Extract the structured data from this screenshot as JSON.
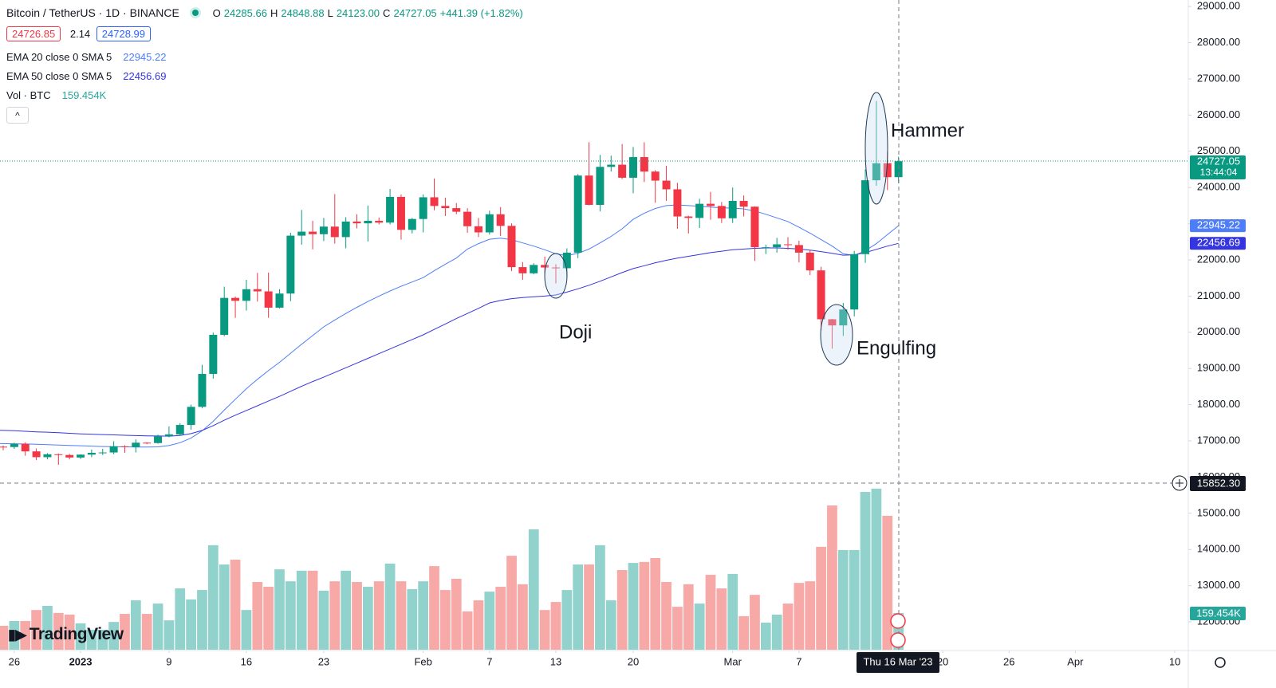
{
  "header": {
    "symbol": "Bitcoin / TetherUS · 1D · BINANCE",
    "o_label": "O",
    "open": "24285.66",
    "h_label": "H",
    "high": "24848.88",
    "l_label": "L",
    "low": "24123.00",
    "c_label": "C",
    "close": "24727.05",
    "change": "+441.39 (+1.82%)",
    "bid": "24726.85",
    "spread": "2.14",
    "ask": "24728.99",
    "vol_label": "Vol · BTC",
    "vol": "159.454K",
    "logo": "TradingView"
  },
  "chart_data": {
    "type": "candlestick",
    "open": [
      16780,
      16840,
      16830,
      16920,
      16710,
      16550,
      16630,
      16610,
      16540,
      16620,
      16670,
      16680,
      16850,
      16830,
      16950,
      16940,
      17130,
      17180,
      17440,
      17940,
      18850,
      19930,
      20950,
      20870,
      21190,
      21130,
      20680,
      21070,
      22670,
      22780,
      22710,
      22920,
      22630,
      23060,
      23010,
      23080,
      23030,
      23740,
      22830,
      23130,
      23730,
      23490,
      23430,
      23330,
      22930,
      22760,
      23260,
      22940,
      21800,
      21630,
      21860,
      21790,
      21770,
      22200,
      24330,
      23520,
      24570,
      24630,
      24270,
      24840,
      24440,
      24190,
      23950,
      23200,
      23160,
      23550,
      23490,
      23150,
      23630,
      23470,
      22350,
      22350,
      22430,
      22410,
      22200,
      21710,
      20360,
      20190,
      20630,
      22160,
      24200,
      24670,
      24285.66
    ],
    "high": [
      16860,
      16870,
      16950,
      16960,
      16790,
      16660,
      16650,
      16640,
      16630,
      16760,
      16780,
      16990,
      16880,
      17040,
      16960,
      17170,
      17400,
      17490,
      18000,
      19100,
      19990,
      21260,
      20990,
      21450,
      21640,
      21650,
      21190,
      22750,
      23380,
      23080,
      23160,
      23820,
      23180,
      23260,
      23500,
      23170,
      23960,
      23810,
      23160,
      23810,
      24250,
      23720,
      23570,
      23430,
      23160,
      23360,
      23460,
      23010,
      21940,
      21910,
      22090,
      21880,
      22320,
      24370,
      25250,
      24900,
      24880,
      25200,
      25120,
      25250,
      24480,
      24600,
      24130,
      23220,
      23690,
      23880,
      23600,
      24000,
      23780,
      23480,
      22420,
      22610,
      22630,
      22530,
      22270,
      21810,
      20370,
      20810,
      22250,
      24500,
      26390,
      25000,
      24848.88
    ],
    "low": [
      16760,
      16740,
      16780,
      16590,
      16470,
      16490,
      16340,
      16490,
      16500,
      16550,
      16610,
      16630,
      16670,
      16680,
      16910,
      16920,
      17100,
      17140,
      17310,
      17900,
      18720,
      19890,
      20400,
      20600,
      20850,
      20400,
      20660,
      20860,
      22420,
      22290,
      22520,
      22450,
      22320,
      22870,
      22510,
      22980,
      22980,
      22560,
      22730,
      22760,
      23370,
      23210,
      23260,
      22750,
      22630,
      22700,
      22660,
      21690,
      21450,
      21600,
      21630,
      21350,
      21530,
      22050,
      23510,
      23340,
      24440,
      24230,
      23840,
      24150,
      23580,
      23630,
      22860,
      22730,
      22880,
      23110,
      23020,
      23020,
      23200,
      21970,
      22160,
      22200,
      22280,
      21930,
      21580,
      20050,
      19550,
      19900,
      20440,
      21920,
      24050,
      23930,
      24123.0
    ],
    "close": [
      16840,
      16830,
      16920,
      16710,
      16550,
      16630,
      16610,
      16540,
      16620,
      16670,
      16680,
      16850,
      16830,
      16950,
      16940,
      17130,
      17180,
      17440,
      17940,
      18850,
      19930,
      20950,
      20870,
      21190,
      21130,
      20680,
      21070,
      22670,
      22780,
      22710,
      22920,
      22630,
      23060,
      23010,
      23080,
      23030,
      23740,
      22830,
      23130,
      23730,
      23490,
      23430,
      23330,
      22930,
      22760,
      23260,
      22940,
      21800,
      21630,
      21860,
      21790,
      21770,
      22200,
      24330,
      23520,
      24570,
      24630,
      24270,
      24840,
      24440,
      24190,
      23950,
      23200,
      23160,
      23550,
      23490,
      23150,
      23630,
      23470,
      22350,
      22350,
      22430,
      22410,
      22200,
      21710,
      20360,
      20190,
      20630,
      22160,
      24200,
      24670,
      24285.66,
      24727.05
    ],
    "volume": [
      104000,
      104000,
      125000,
      125000,
      173000,
      191000,
      160000,
      153000,
      115000,
      87000,
      87000,
      121000,
      156000,
      215000,
      156000,
      201000,
      128000,
      267000,
      219000,
      260000,
      455000,
      371000,
      392000,
      173000,
      295000,
      274000,
      350000,
      298000,
      344000,
      344000,
      257000,
      298000,
      344000,
      295000,
      274000,
      298000,
      375000,
      298000,
      264000,
      298000,
      364000,
      260000,
      309000,
      167000,
      215000,
      253000,
      274000,
      409000,
      285000,
      524000,
      173000,
      208000,
      260000,
      371000,
      371000,
      455000,
      215000,
      347000,
      378000,
      382000,
      399000,
      295000,
      187000,
      285000,
      201000,
      326000,
      267000,
      330000,
      146000,
      239000,
      118000,
      153000,
      201000,
      291000,
      298000,
      448000,
      628000,
      434000,
      434000,
      687000,
      701000,
      583000,
      159454
    ],
    "series": [
      {
        "name": "EMA 20 close 0 SMA 5",
        "color": "#4d7ef7",
        "values": [
          16930,
          16925,
          16920,
          16915,
          16905,
          16895,
          16885,
          16875,
          16865,
          16855,
          16845,
          16840,
          16835,
          16830,
          16830,
          16835,
          16870,
          16950,
          17080,
          17280,
          17540,
          17850,
          18150,
          18440,
          18700,
          18940,
          19170,
          19420,
          19670,
          19910,
          20150,
          20340,
          20520,
          20690,
          20850,
          21000,
          21140,
          21270,
          21390,
          21510,
          21700,
          21880,
          22050,
          22300,
          22450,
          22570,
          22600,
          22560,
          22470,
          22380,
          22280,
          22170,
          22120,
          22180,
          22300,
          22470,
          22650,
          22860,
          23120,
          23290,
          23420,
          23500,
          23520,
          23500,
          23480,
          23460,
          23440,
          23430,
          23410,
          23350,
          23260,
          23160,
          23060,
          22900,
          22740,
          22560,
          22380,
          22170,
          22120,
          22250,
          22450,
          22700,
          22945.22
        ]
      },
      {
        "name": "EMA 50 close 0 SMA 5",
        "color": "#3434e0",
        "values": [
          17300,
          17290,
          17280,
          17265,
          17250,
          17240,
          17225,
          17210,
          17195,
          17185,
          17175,
          17165,
          17155,
          17145,
          17140,
          17135,
          17130,
          17150,
          17200,
          17290,
          17420,
          17570,
          17710,
          17840,
          17970,
          18100,
          18230,
          18370,
          18510,
          18640,
          18760,
          18890,
          19020,
          19150,
          19280,
          19410,
          19540,
          19670,
          19800,
          19930,
          20080,
          20230,
          20380,
          20520,
          20660,
          20810,
          20880,
          20930,
          20960,
          20980,
          21000,
          21030,
          21110,
          21200,
          21300,
          21410,
          21530,
          21650,
          21760,
          21840,
          21920,
          21990,
          22050,
          22100,
          22150,
          22200,
          22240,
          22280,
          22300,
          22320,
          22330,
          22330,
          22320,
          22300,
          22270,
          22230,
          22180,
          22130,
          22140,
          22200,
          22290,
          22380,
          22456.69
        ]
      }
    ],
    "up_color": "#089981",
    "down_color": "#f23645",
    "up_volume_color": "#92d2cc",
    "down_volume_color": "#f7a9a7",
    "ylim": [
      11230,
      29180
    ],
    "yticks": [
      {
        "value": 12000,
        "label": "12000.00"
      },
      {
        "value": 13000,
        "label": "13000.00"
      },
      {
        "value": 14000,
        "label": "14000.00"
      },
      {
        "value": 15000,
        "label": "15000.00"
      },
      {
        "value": 16000,
        "label": "16000.00"
      },
      {
        "value": 17000,
        "label": "17000.00"
      },
      {
        "value": 18000,
        "label": "18000.00"
      },
      {
        "value": 19000,
        "label": "19000.00"
      },
      {
        "value": 20000,
        "label": "20000.00"
      },
      {
        "value": 21000,
        "label": "21000.00"
      },
      {
        "value": 22000,
        "label": "22000.00"
      },
      {
        "value": 23000,
        "label": "23000.00"
      },
      {
        "value": 24000,
        "label": "24000.00"
      },
      {
        "value": 25000,
        "label": "25000.00"
      },
      {
        "value": 26000,
        "label": "26000.00"
      },
      {
        "value": 27000,
        "label": "27000.00"
      },
      {
        "value": 28000,
        "label": "28000.00"
      },
      {
        "value": 29000,
        "label": "29000.00"
      }
    ],
    "xlim": [
      0.71,
      108.22
    ],
    "xticks": [
      {
        "value": 2,
        "label": "26"
      },
      {
        "value": 8,
        "label": "2023"
      },
      {
        "value": 16,
        "label": "9"
      },
      {
        "value": 23,
        "label": "16"
      },
      {
        "value": 30,
        "label": "23"
      },
      {
        "value": 39,
        "label": "Feb"
      },
      {
        "value": 45,
        "label": "7"
      },
      {
        "value": 51,
        "label": "13"
      },
      {
        "value": 58,
        "label": "20"
      },
      {
        "value": 67,
        "label": "Mar"
      },
      {
        "value": 73,
        "label": "7"
      },
      {
        "value": 86,
        "label": "20"
      },
      {
        "value": 92,
        "label": "26"
      },
      {
        "value": 98,
        "label": "Apr"
      },
      {
        "value": 107,
        "label": "10"
      }
    ],
    "last_price_label": "24727.05",
    "countdown": "13:44:04",
    "volume_label": "159.454K",
    "crosshair_price": "15852.30",
    "crosshair_date": "Thu 16 Mar '23",
    "annotations": [
      "Hammer",
      "Doji",
      "Engulfing"
    ]
  }
}
